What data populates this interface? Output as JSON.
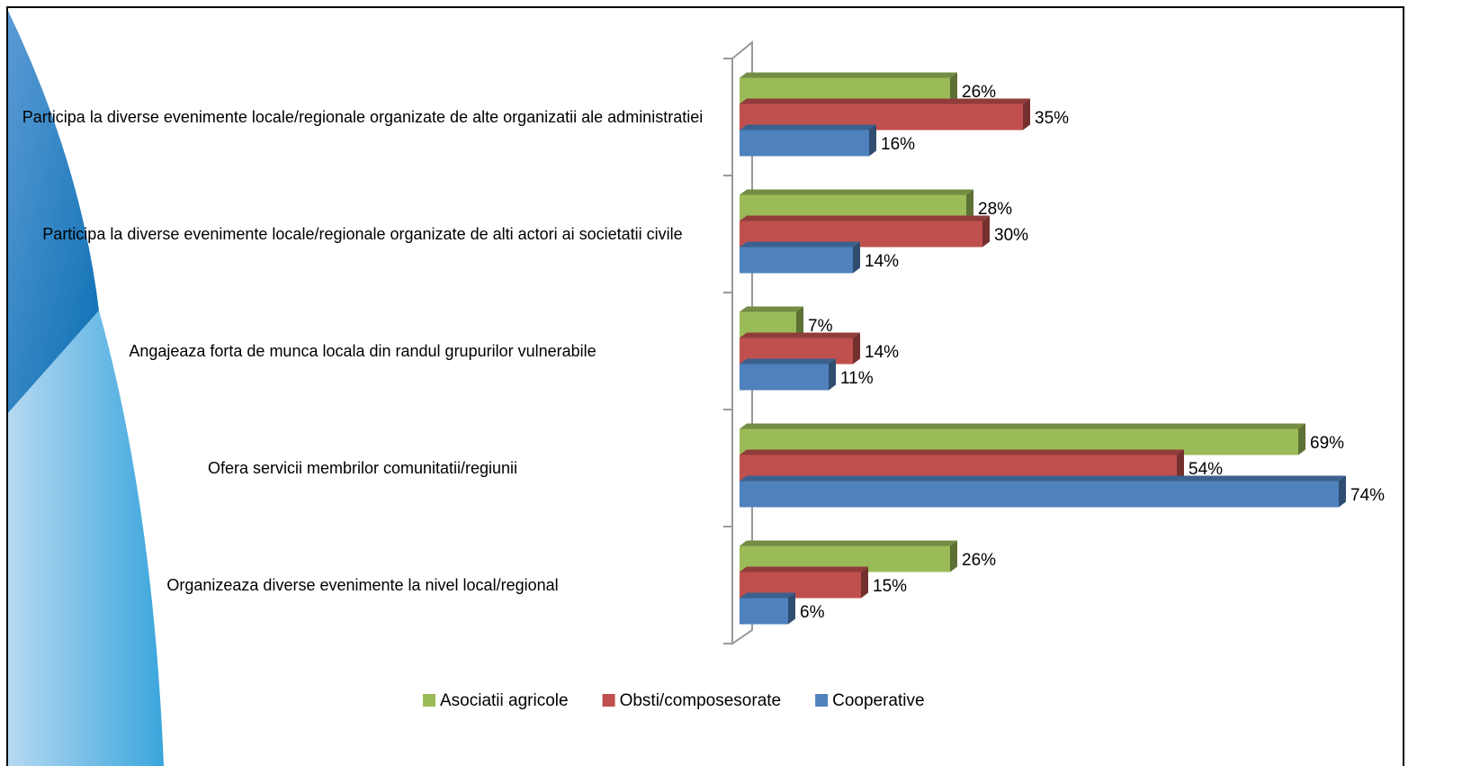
{
  "chart_data": {
    "type": "bar3d_horizontal",
    "categories": [
      "Participa la diverse evenimente locale/regionale organizate de alte organizatii ale administratiei",
      "Participa la diverse evenimente locale/regionale organizate de alti actori ai societatii civile",
      "Angajeaza forta de munca locala din randul grupurilor vulnerabile",
      "Ofera servicii membrilor comunitatii/regiunii",
      "Organizeaza diverse evenimente la nivel local/regional"
    ],
    "series": [
      {
        "name": "Asociatii agricole",
        "color": "#9bbb59",
        "values": [
          26,
          28,
          7,
          69,
          26
        ],
        "value_labels": [
          "26%",
          "28%",
          "7%",
          "69%",
          "26%"
        ]
      },
      {
        "name": "Obsti/composesorate",
        "color": "#c0504d",
        "values": [
          35,
          30,
          14,
          54,
          15
        ],
        "value_labels": [
          "35%",
          "30%",
          "14%",
          "54%",
          "15%"
        ]
      },
      {
        "name": "Cooperative",
        "color": "#4f81bd",
        "values": [
          16,
          14,
          11,
          74,
          6
        ],
        "value_labels": [
          "16%",
          "14%",
          "11%",
          "74%",
          "6%"
        ]
      }
    ],
    "xlim": [
      0,
      80
    ],
    "legend": "bottom"
  }
}
